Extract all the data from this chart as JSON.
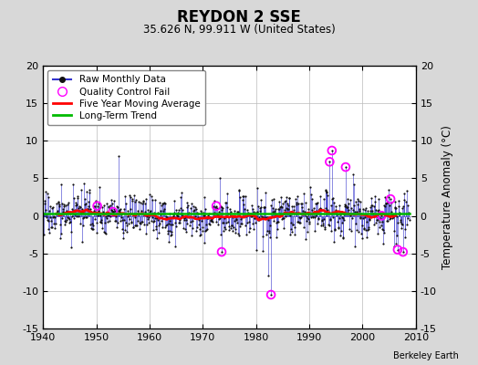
{
  "title": "REYDON 2 SSE",
  "subtitle": "35.626 N, 99.911 W (United States)",
  "ylabel": "Temperature Anomaly (°C)",
  "attribution": "Berkeley Earth",
  "x_start": 1940,
  "x_end": 2010,
  "y_min": -15,
  "y_max": 20,
  "background_color": "#d8d8d8",
  "plot_bg_color": "#ffffff",
  "raw_line_color": "#3333cc",
  "raw_dot_color": "#111111",
  "qc_fail_color": "#ff00ff",
  "moving_avg_color": "#ff0000",
  "trend_color": "#00bb00",
  "seed": 17,
  "yticks": [
    -15,
    -10,
    -5,
    0,
    5,
    10,
    15,
    20
  ],
  "xticks": [
    1940,
    1950,
    1960,
    1970,
    1980,
    1990,
    2000,
    2010
  ],
  "legend_labels": [
    "Raw Monthly Data",
    "Quality Control Fail",
    "Five Year Moving Average",
    "Long-Term Trend"
  ]
}
